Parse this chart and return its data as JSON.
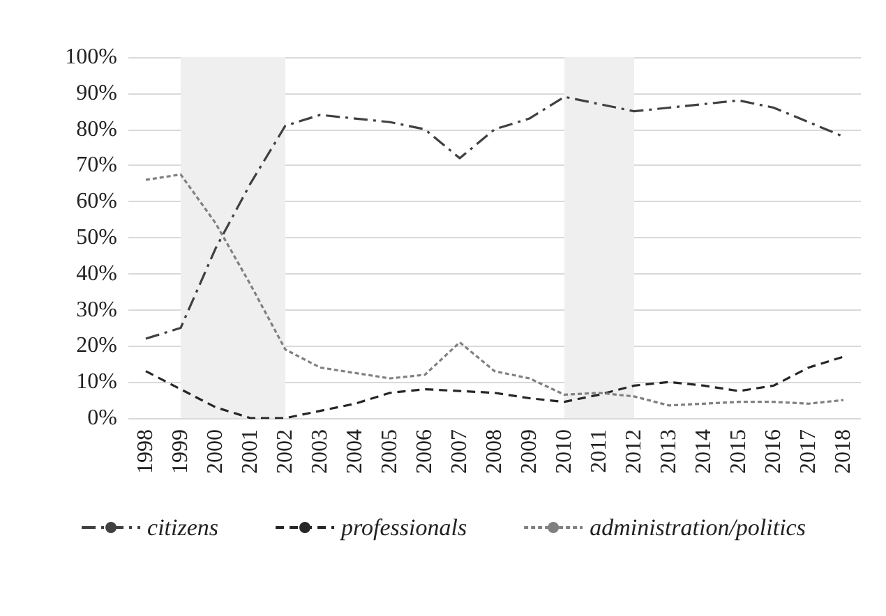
{
  "chart_data": {
    "type": "line",
    "categories": [
      "1998",
      "1999",
      "2000",
      "2001",
      "2002",
      "2003",
      "2004",
      "2005",
      "2006",
      "2007",
      "2008",
      "2009",
      "2010",
      "2011",
      "2012",
      "2013",
      "2014",
      "2015",
      "2016",
      "2017",
      "2018"
    ],
    "series": [
      {
        "name": "citizens",
        "color": "#404040",
        "line_style": "dashdot",
        "values": [
          22,
          25,
          47,
          65,
          81,
          84,
          83,
          82,
          80,
          72,
          80,
          83,
          89,
          87,
          85,
          86,
          87,
          88,
          86,
          82,
          78
        ]
      },
      {
        "name": "professionals",
        "color": "#262626",
        "line_style": "dashed",
        "values": [
          13,
          8,
          3,
          0,
          0,
          2,
          4,
          7,
          8,
          7.5,
          7,
          5.5,
          4.5,
          6.5,
          9,
          10,
          9,
          7.5,
          9,
          14,
          17
        ]
      },
      {
        "name": "administration/politics",
        "color": "#808080",
        "line_style": "dotted",
        "values": [
          66,
          67.5,
          54,
          37,
          19,
          14,
          12.5,
          11,
          12,
          21,
          13,
          11,
          6.5,
          7,
          6,
          3.5,
          4,
          4.5,
          4.5,
          4,
          5
        ]
      }
    ],
    "ylim": [
      0,
      100
    ],
    "yticks": [
      {
        "value": 0,
        "label": "0%"
      },
      {
        "value": 10,
        "label": "10%"
      },
      {
        "value": 20,
        "label": "20%"
      },
      {
        "value": 30,
        "label": "30%"
      },
      {
        "value": 40,
        "label": "40%"
      },
      {
        "value": 50,
        "label": "50%"
      },
      {
        "value": 60,
        "label": "60%"
      },
      {
        "value": 70,
        "label": "70%"
      },
      {
        "value": 80,
        "label": "80%"
      },
      {
        "value": 90,
        "label": "90%"
      },
      {
        "value": 100,
        "label": "100%"
      }
    ],
    "bands": [
      {
        "axis": "x",
        "from": "1999",
        "to": "2002",
        "color": "#efefef"
      },
      {
        "axis": "x",
        "from": "2010",
        "to": "2012",
        "color": "#efefef"
      }
    ],
    "grid": "y",
    "legend": "bottom",
    "marker": "none"
  }
}
